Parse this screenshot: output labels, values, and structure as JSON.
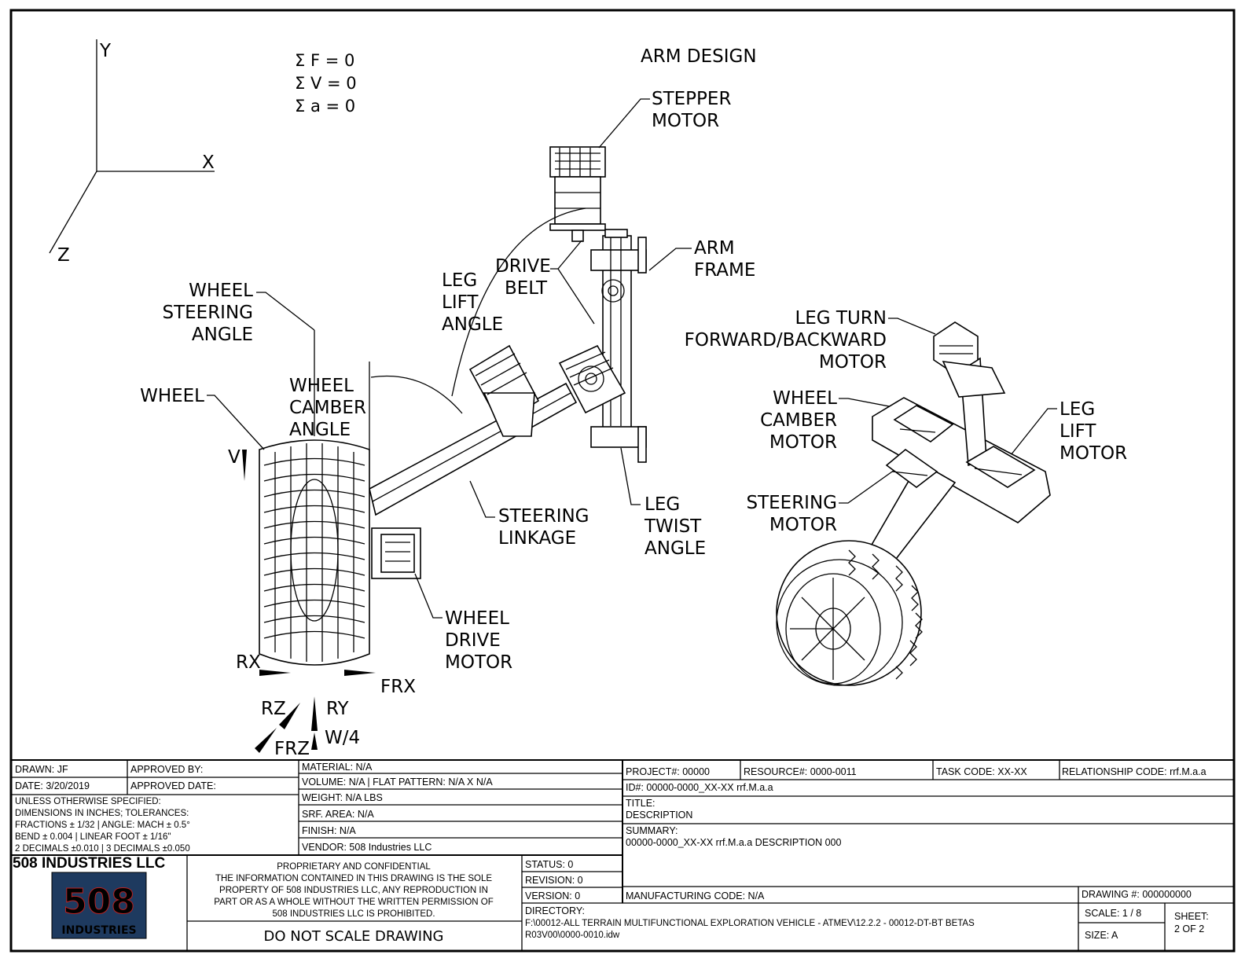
{
  "equations": [
    "Σ F = 0",
    "Σ V = 0",
    "Σ a = 0"
  ],
  "axes": {
    "y": "Y",
    "x": "X",
    "z": "Z"
  },
  "heading": "ARM DESIGN",
  "callouts": {
    "stepper_motor": [
      "STEPPER",
      "MOTOR"
    ],
    "arm_frame": [
      "ARM",
      "FRAME"
    ],
    "drive_belt": [
      "DRIVE",
      "BELT"
    ],
    "leg_lift_angle": [
      "LEG",
      "LIFT",
      "ANGLE"
    ],
    "wheel_steering_angle": [
      "WHEEL",
      "STEERING",
      "ANGLE"
    ],
    "wheel": [
      "WHEEL"
    ],
    "wheel_camber_angle": [
      "WHEEL",
      "CAMBER",
      "ANGLE"
    ],
    "steering_linkage": [
      "STEERING",
      "LINKAGE"
    ],
    "leg_twist_angle": [
      "LEG",
      "TWIST",
      "ANGLE"
    ],
    "wheel_drive_motor": [
      "WHEEL",
      "DRIVE",
      "MOTOR"
    ],
    "leg_turn_motor": [
      "LEG TURN",
      "FORWARD/BACKWARD",
      "MOTOR"
    ],
    "wheel_camber_motor": [
      "WHEEL",
      "CAMBER",
      "MOTOR"
    ],
    "leg_lift_motor": [
      "LEG",
      "LIFT",
      "MOTOR"
    ],
    "steering_motor": [
      "STEERING",
      "MOTOR"
    ]
  },
  "force_labels": {
    "v": "V",
    "rx": "RX",
    "frx": "FRX",
    "rz": "RZ",
    "ry": "RY",
    "frz": "FRZ",
    "w4": "W/4"
  },
  "title_block": {
    "drawn": "DRAWN: JF",
    "approved_by": "APPROVED BY:",
    "date": "DATE: 3/20/2019",
    "approved_date": "APPROVED DATE:",
    "tolerances": [
      "UNLESS OTHERWISE SPECIFIED:",
      "DIMENSIONS IN INCHES; TOLERANCES:",
      "FRACTIONS ± 1/32 | ANGLE: MACH ± 0.5°",
      "BEND ± 0.004 | LINEAR FOOT ± 1/16\"",
      "2 DECIMALS ±0.010 | 3 DECIMALS ±0.050"
    ],
    "material": "MATERIAL: N/A",
    "volume": "VOLUME: N/A | FLAT PATTERN: N/A X N/A",
    "weight": "WEIGHT: N/A LBS",
    "srf_area": "SRF. AREA: N/A",
    "finish": "FINISH: N/A",
    "vendor": "VENDOR: 508 Industries LLC",
    "company": "508 INDUSTRIES LLC",
    "logo_text": [
      "508",
      "INDUSTRIES"
    ],
    "proprietary": [
      "PROPRIETARY AND CONFIDENTIAL",
      "THE INFORMATION CONTAINED IN THIS DRAWING IS THE SOLE",
      "PROPERTY OF 508 INDUSTRIES LLC, ANY REPRODUCTION IN",
      "PART OR AS A WHOLE WITHOUT THE WRITTEN PERMISSION OF",
      "508 INDUSTRIES LLC IS PROHIBITED."
    ],
    "do_not_scale": "DO NOT SCALE DRAWING",
    "status": "STATUS: 0",
    "revision": "REVISION: 0",
    "version": "VERSION: 0",
    "project": "PROJECT#: 00000",
    "resource": "RESOURCE#: 0000-0011",
    "task_code": "TASK CODE: XX-XX",
    "relationship_code": "RELATIONSHIP CODE: rrf.M.a.a",
    "id": "ID#: 00000-0000_XX-XX rrf.M.a.a",
    "title_label": "TITLE:",
    "title_value": "DESCRIPTION",
    "summary_label": "SUMMARY:",
    "summary_value": "00000-0000_XX-XX rrf.M.a.a DESCRIPTION 000",
    "manufacturing_code": "MANUFACTURING CODE: N/A",
    "drawing_number": "DRAWING #: 000000000",
    "directory_label": "DIRECTORY:",
    "directory_lines": [
      "F:\\00012-ALL TERRAIN MULTIFUNCTIONAL EXPLORATION VEHICLE - ATMEV\\12.2.2 - 00012-DT-BT BETAS",
      "R03V00\\0000-0010.idw"
    ],
    "scale": "SCALE: 1 / 8",
    "size": "SIZE: A",
    "sheet": [
      "SHEET:",
      "2 OF 2"
    ]
  }
}
